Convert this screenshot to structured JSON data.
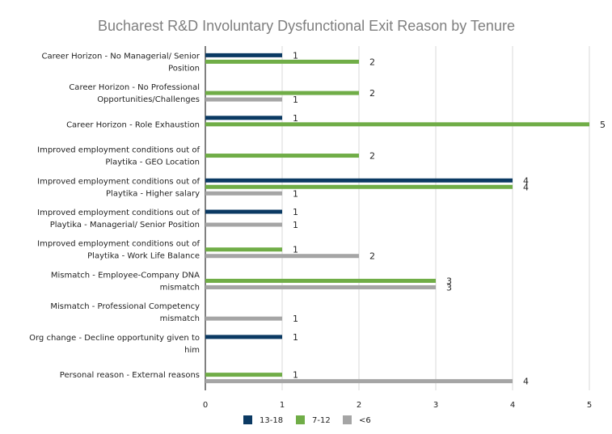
{
  "chart_data": {
    "type": "bar",
    "orientation": "horizontal",
    "title": "Bucharest R&D Involuntary Dysfunctional Exit Reason by Tenure",
    "categories": [
      [
        "Career Horizon - No Managerial/ Senior",
        "Position"
      ],
      [
        "Career Horizon - No Professional",
        "Opportunities/Challenges"
      ],
      [
        "Career Horizon - Role Exhaustion"
      ],
      [
        "Improved employment conditions out of",
        "Playtika - GEO Location"
      ],
      [
        "Improved employment conditions out of",
        "Playtika - Higher salary"
      ],
      [
        "Improved employment conditions out of",
        "Playtika - Managerial/ Senior Position"
      ],
      [
        "Improved employment conditions out of",
        "Playtika - Work Life Balance"
      ],
      [
        "Mismatch - Employee-Company DNA",
        "mismatch"
      ],
      [
        "Mismatch - Professional Competency",
        "mismatch"
      ],
      [
        "Org change - Decline opportunity given to",
        "him"
      ],
      [
        "Personal reason - External reasons"
      ]
    ],
    "series": [
      {
        "name": "13-18",
        "color": "#0b3a63",
        "values": [
          1,
          null,
          1,
          null,
          4,
          1,
          null,
          null,
          null,
          1,
          null
        ]
      },
      {
        "name": "7-12",
        "color": "#70ad47",
        "values": [
          2,
          2,
          5,
          2,
          4,
          null,
          1,
          3,
          null,
          null,
          1
        ]
      },
      {
        "name": "<6",
        "color": "#a5a5a5",
        "values": [
          null,
          1,
          null,
          null,
          1,
          1,
          2,
          3,
          1,
          null,
          4
        ]
      }
    ],
    "xlim": [
      0,
      5
    ],
    "xticks": [
      0,
      1,
      2,
      3,
      4,
      5
    ],
    "grid": "vertical",
    "legend": "bottom"
  }
}
